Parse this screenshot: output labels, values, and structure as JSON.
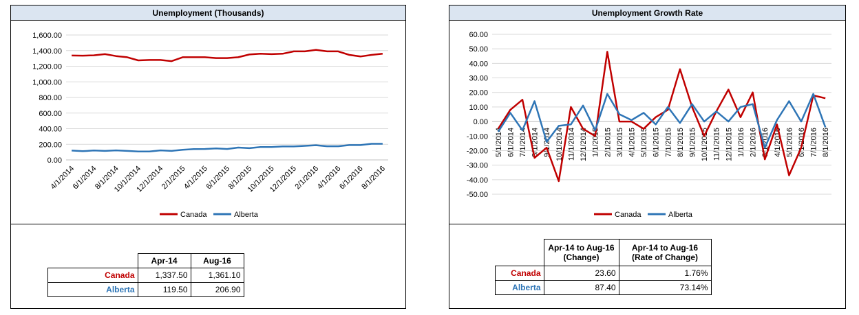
{
  "colors": {
    "canada": "#c00000",
    "alberta": "#2e75b6",
    "title_bg": "#dbe5f1",
    "grid": "#d9d9d9"
  },
  "dates": [
    "4/1/2014",
    "5/1/2014",
    "6/1/2014",
    "7/1/2014",
    "8/1/2014",
    "9/1/2014",
    "10/1/2014",
    "11/1/2014",
    "12/1/2014",
    "1/1/2015",
    "2/1/2015",
    "3/1/2015",
    "4/1/2015",
    "5/1/2015",
    "6/1/2015",
    "7/1/2015",
    "8/1/2015",
    "9/1/2015",
    "10/1/2015",
    "11/1/2015",
    "12/1/2015",
    "1/1/2016",
    "2/1/2016",
    "3/1/2016",
    "4/1/2016",
    "5/1/2016",
    "6/1/2016",
    "7/1/2016",
    "8/1/2016"
  ],
  "chart_data": [
    {
      "type": "line",
      "title": "Unemployment (Thousands)",
      "ylim": [
        0,
        1600
      ],
      "y_ticks": [
        "0.00",
        "200.00",
        "400.00",
        "600.00",
        "800.00",
        "1,000.00",
        "1,200.00",
        "1,400.00",
        "1,600.00"
      ],
      "x_tick_labels": [
        "4/1/2014",
        "6/1/2014",
        "8/1/2014",
        "10/1/2014",
        "12/1/2014",
        "2/1/2015",
        "4/1/2015",
        "6/1/2015",
        "8/1/2015",
        "10/1/2015",
        "12/1/2015",
        "2/1/2016",
        "4/1/2016",
        "6/1/2016",
        "8/1/2016"
      ],
      "grid": true,
      "legend": "bottom",
      "series": [
        {
          "name": "Canada",
          "values": [
            1337.5,
            1335,
            1340,
            1355,
            1330,
            1315,
            1275,
            1280,
            1280,
            1265,
            1315,
            1315,
            1315,
            1305,
            1305,
            1315,
            1350,
            1360,
            1355,
            1360,
            1390,
            1390,
            1410,
            1390,
            1390,
            1345,
            1325,
            1345,
            1361.1
          ]
        },
        {
          "name": "Alberta",
          "values": [
            119.5,
            112,
            120,
            115,
            122,
            115,
            108,
            108,
            122,
            115,
            130,
            138,
            140,
            148,
            140,
            158,
            150,
            165,
            165,
            172,
            172,
            180,
            188,
            175,
            175,
            190,
            190,
            207,
            206.9
          ]
        }
      ]
    },
    {
      "type": "line",
      "title": "Unemployment Growth Rate",
      "ylim": [
        -50,
        60
      ],
      "y_ticks": [
        "-50.00",
        "-40.00",
        "-30.00",
        "-20.00",
        "-10.00",
        "0.00",
        "10.00",
        "20.00",
        "30.00",
        "40.00",
        "50.00",
        "60.00"
      ],
      "x_tick_labels": [
        "5/1/2014",
        "6/1/2014",
        "7/1/2014",
        "8/1/2014",
        "9/1/2014",
        "10/1/2014",
        "11/1/2014",
        "12/1/2014",
        "1/1/2015",
        "2/1/2015",
        "3/1/2015",
        "4/1/2015",
        "5/1/2015",
        "6/1/2015",
        "7/1/2015",
        "8/1/2015",
        "9/1/2015",
        "10/1/2015",
        "11/1/2015",
        "12/1/2015",
        "1/1/2016",
        "2/1/2016",
        "3/1/2016",
        "4/1/2016",
        "5/1/2016",
        "6/1/2016",
        "7/1/2016",
        "8/1/2016"
      ],
      "grid": true,
      "legend": "bottom",
      "series": [
        {
          "name": "Canada",
          "values": [
            -5,
            8,
            15,
            -25,
            -18,
            -41,
            10,
            -5,
            -10,
            48,
            0,
            0,
            -5,
            3,
            8,
            36,
            10,
            -10,
            7,
            22,
            3,
            20,
            -26,
            -2,
            -37,
            -18,
            18,
            16
          ]
        },
        {
          "name": "Alberta",
          "values": [
            -7,
            6,
            -6,
            14,
            -14,
            -3,
            -2,
            11,
            -6,
            19,
            5,
            1,
            6,
            -2,
            10,
            -1,
            12,
            0,
            7,
            0,
            10,
            12,
            -18,
            1,
            14,
            0,
            19,
            -4
          ]
        }
      ]
    }
  ],
  "left_table": {
    "headers": [
      "Apr-14",
      "Aug-16"
    ],
    "rows": [
      {
        "label": "Canada",
        "values": [
          "1,337.50",
          "1,361.10"
        ]
      },
      {
        "label": "Alberta",
        "values": [
          "119.50",
          "206.90"
        ]
      }
    ]
  },
  "right_table": {
    "headers": [
      {
        "line1": "Apr-14 to Aug-16",
        "line2": "(Change)"
      },
      {
        "line1": "Apr-14 to Aug-16",
        "line2": "(Rate of Change)"
      }
    ],
    "rows": [
      {
        "label": "Canada",
        "values": [
          "23.60",
          "1.76%"
        ]
      },
      {
        "label": "Alberta",
        "values": [
          "87.40",
          "73.14%"
        ]
      }
    ]
  }
}
